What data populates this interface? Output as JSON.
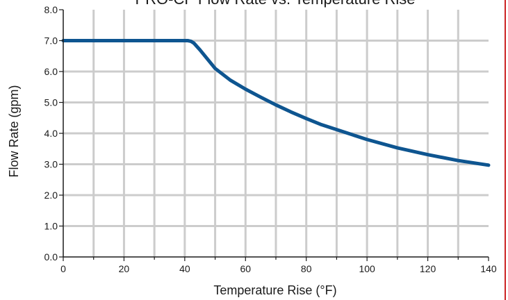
{
  "chart_data": {
    "type": "line",
    "title": "PRO-CF Flow Rate vs. Temperature Rise",
    "xlabel": "Temperature Rise (°F)",
    "ylabel": "Flow Rate (gpm)",
    "xlim": [
      0,
      140
    ],
    "ylim": [
      0,
      8
    ],
    "xticks": [
      "0",
      "20",
      "40",
      "60",
      "80",
      "100",
      "120",
      "140"
    ],
    "yticks": [
      "0.0",
      "1.0",
      "2.0",
      "3.0",
      "4.0",
      "5.0",
      "6.0",
      "7.0",
      "8.0"
    ],
    "grid": true,
    "series": [
      {
        "x": [
          0,
          10,
          20,
          30,
          40,
          41,
          42,
          43,
          45,
          47.5,
          50,
          55,
          60,
          65,
          70,
          75,
          80,
          85,
          90,
          100,
          110,
          120,
          130,
          140
        ],
        "y": [
          7.0,
          7.0,
          7.0,
          7.0,
          7.0,
          7.0,
          6.98,
          6.92,
          6.7,
          6.4,
          6.1,
          5.72,
          5.43,
          5.17,
          4.92,
          4.69,
          4.48,
          4.28,
          4.12,
          3.8,
          3.53,
          3.31,
          3.12,
          2.97
        ]
      }
    ],
    "colors": {
      "line": "#0e5590",
      "grid": "#cccccc",
      "axis": "#1a1a1a",
      "border": "#cc2222"
    }
  }
}
